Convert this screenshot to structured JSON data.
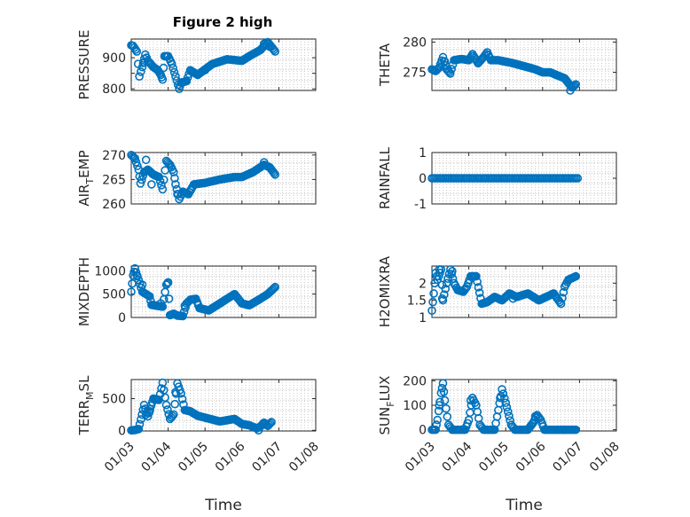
{
  "chart_data": [
    {
      "type": "scatter",
      "title": "Figure 2 high",
      "ylabel": "PRESSURE",
      "ylim": [
        795,
        960
      ],
      "yticks": [
        800,
        850,
        900
      ],
      "yticklabels": [
        "800",
        "",
        "900"
      ],
      "xlim": [
        0,
        5
      ],
      "xticks": [
        0,
        1,
        2,
        3,
        4,
        5
      ],
      "xlabel": "",
      "marker_color": "#0072BD",
      "keys": [
        [
          0,
          940
        ],
        [
          0.05,
          938
        ],
        [
          0.15,
          920
        ],
        [
          0.22,
          840
        ],
        [
          0.3,
          870
        ],
        [
          0.38,
          910
        ],
        [
          0.45,
          890
        ],
        [
          0.6,
          870
        ],
        [
          0.72,
          860
        ],
        [
          0.8,
          845
        ],
        [
          0.85,
          830
        ],
        [
          0.9,
          905
        ],
        [
          1.0,
          905
        ],
        [
          1.1,
          880
        ],
        [
          1.2,
          840
        ],
        [
          1.3,
          800
        ],
        [
          1.35,
          820
        ],
        [
          1.5,
          825
        ],
        [
          1.6,
          860
        ],
        [
          1.8,
          845
        ],
        [
          2.2,
          880
        ],
        [
          2.6,
          895
        ],
        [
          3.0,
          890
        ],
        [
          3.2,
          905
        ],
        [
          3.5,
          925
        ],
        [
          3.7,
          950
        ],
        [
          3.9,
          920
        ]
      ],
      "extra": [
        [
          3.6,
          945
        ],
        [
          3.75,
          935
        ],
        [
          0.35,
          885
        ],
        [
          2.0,
          860
        ]
      ]
    },
    {
      "type": "scatter",
      "title": "",
      "ylabel": "THETA",
      "ylim": [
        272,
        280.5
      ],
      "yticks": [
        275,
        280
      ],
      "yticklabels": [
        "275",
        "280"
      ],
      "xlim": [
        0,
        5
      ],
      "xticks": [
        0,
        1,
        2,
        3,
        4,
        5
      ],
      "xlabel": "",
      "marker_color": "#0072BD",
      "keys": [
        [
          0,
          275.5
        ],
        [
          0.1,
          275.2
        ],
        [
          0.2,
          275.8
        ],
        [
          0.3,
          277.5
        ],
        [
          0.4,
          275.5
        ],
        [
          0.5,
          274.8
        ],
        [
          0.6,
          277
        ],
        [
          0.8,
          277.2
        ],
        [
          1.0,
          277
        ],
        [
          1.1,
          278
        ],
        [
          1.25,
          276.5
        ],
        [
          1.4,
          277.5
        ],
        [
          1.5,
          278.3
        ],
        [
          1.6,
          277
        ],
        [
          1.8,
          277
        ],
        [
          2.2,
          276.5
        ],
        [
          2.5,
          276
        ],
        [
          2.8,
          275.5
        ],
        [
          3.0,
          275
        ],
        [
          3.2,
          275
        ],
        [
          3.4,
          274.5
        ],
        [
          3.6,
          274
        ],
        [
          3.7,
          273.2
        ],
        [
          3.8,
          272.5
        ],
        [
          3.9,
          273
        ]
      ],
      "extra": [
        [
          0.35,
          276.8
        ],
        [
          3.75,
          272
        ]
      ]
    },
    {
      "type": "scatter",
      "title": "",
      "ylabel": "AIR_TEMP",
      "ylim": [
        260,
        270.5
      ],
      "yticks": [
        260,
        265,
        270
      ],
      "yticklabels": [
        "260",
        "265",
        "270"
      ],
      "xlim": [
        0,
        5
      ],
      "xticks": [
        0,
        1,
        2,
        3,
        4,
        5
      ],
      "xlabel": "",
      "marker_color": "#0072BD",
      "keys": [
        [
          0,
          270
        ],
        [
          0.1,
          269.3
        ],
        [
          0.2,
          267
        ],
        [
          0.25,
          264.2
        ],
        [
          0.35,
          266.5
        ],
        [
          0.45,
          267
        ],
        [
          0.6,
          266
        ],
        [
          0.75,
          265.5
        ],
        [
          0.85,
          263
        ],
        [
          0.95,
          268.8
        ],
        [
          1.05,
          268
        ],
        [
          1.15,
          266.5
        ],
        [
          1.2,
          264
        ],
        [
          1.3,
          261
        ],
        [
          1.4,
          262.5
        ],
        [
          1.55,
          262
        ],
        [
          1.7,
          264
        ],
        [
          2.0,
          264.3
        ],
        [
          2.4,
          265
        ],
        [
          2.8,
          265.5
        ],
        [
          3.0,
          265.5
        ],
        [
          3.3,
          266.5
        ],
        [
          3.6,
          268
        ],
        [
          3.75,
          267.5
        ],
        [
          3.9,
          266
        ]
      ],
      "extra": [
        [
          0.4,
          269
        ],
        [
          3.6,
          268.5
        ],
        [
          1.25,
          262
        ],
        [
          0.55,
          264
        ]
      ]
    },
    {
      "type": "scatter",
      "title": "",
      "ylabel": "RAINFALL",
      "ylim": [
        -1,
        1
      ],
      "yticks": [
        -1,
        0,
        1
      ],
      "yticklabels": [
        "-1",
        "0",
        "1"
      ],
      "xlim": [
        0,
        5
      ],
      "xticks": [
        0,
        1,
        2,
        3,
        4,
        5
      ],
      "xlabel": "",
      "marker_color": "#0072BD",
      "keys": [
        [
          0,
          0
        ],
        [
          3.95,
          0
        ]
      ],
      "extra": []
    },
    {
      "type": "scatter",
      "title": "",
      "ylabel": "MIXDEPTH",
      "ylim": [
        0,
        1100
      ],
      "yticks": [
        0,
        500,
        1000
      ],
      "yticklabels": [
        "0",
        "500",
        "1000"
      ],
      "xlim": [
        0,
        5
      ],
      "xticks": [
        0,
        1,
        2,
        3,
        4,
        5
      ],
      "xlabel": "",
      "marker_color": "#0072BD",
      "keys": [
        [
          0,
          550
        ],
        [
          0.05,
          900
        ],
        [
          0.1,
          1050
        ],
        [
          0.2,
          800
        ],
        [
          0.3,
          550
        ],
        [
          0.4,
          500
        ],
        [
          0.5,
          450
        ],
        [
          0.55,
          270
        ],
        [
          0.7,
          250
        ],
        [
          0.85,
          230
        ],
        [
          0.95,
          700
        ],
        [
          1.0,
          750
        ],
        [
          1.05,
          50
        ],
        [
          1.15,
          80
        ],
        [
          1.25,
          40
        ],
        [
          1.4,
          30
        ],
        [
          1.5,
          300
        ],
        [
          1.6,
          380
        ],
        [
          1.75,
          400
        ],
        [
          1.85,
          200
        ],
        [
          2.1,
          150
        ],
        [
          2.5,
          350
        ],
        [
          2.8,
          500
        ],
        [
          3.0,
          300
        ],
        [
          3.2,
          260
        ],
        [
          3.5,
          400
        ],
        [
          3.7,
          500
        ],
        [
          3.9,
          650
        ]
      ],
      "extra": [
        [
          0.15,
          900
        ],
        [
          0.3,
          700
        ],
        [
          0.8,
          300
        ],
        [
          1.45,
          250
        ]
      ]
    },
    {
      "type": "scatter",
      "title": "",
      "ylabel": "H2OMIXRA",
      "ylim": [
        1,
        2.5
      ],
      "yticks": [
        1,
        1.5,
        2
      ],
      "yticklabels": [
        "1",
        "1.5",
        "2"
      ],
      "xlim": [
        0,
        5
      ],
      "xticks": [
        0,
        1,
        2,
        3,
        4,
        5
      ],
      "xlabel": "",
      "marker_color": "#0072BD",
      "keys": [
        [
          0,
          1.2
        ],
        [
          0.05,
          1.7
        ],
        [
          0.1,
          2.3
        ],
        [
          0.15,
          2.1
        ],
        [
          0.25,
          2.4
        ],
        [
          0.3,
          1.5
        ],
        [
          0.4,
          2.0
        ],
        [
          0.5,
          2.4
        ],
        [
          0.6,
          2.0
        ],
        [
          0.7,
          1.8
        ],
        [
          0.85,
          1.75
        ],
        [
          0.95,
          1.9
        ],
        [
          1.05,
          2.2
        ],
        [
          1.2,
          2.2
        ],
        [
          1.35,
          1.4
        ],
        [
          1.5,
          1.45
        ],
        [
          1.7,
          1.6
        ],
        [
          1.9,
          1.5
        ],
        [
          2.1,
          1.7
        ],
        [
          2.3,
          1.6
        ],
        [
          2.6,
          1.7
        ],
        [
          2.9,
          1.5
        ],
        [
          3.1,
          1.6
        ],
        [
          3.3,
          1.7
        ],
        [
          3.5,
          1.4
        ],
        [
          3.6,
          1.9
        ],
        [
          3.7,
          2.1
        ],
        [
          3.9,
          2.2
        ]
      ],
      "extra": [
        [
          0.2,
          2.4
        ],
        [
          0.28,
          1.55
        ],
        [
          0.55,
          2.35
        ],
        [
          2.2,
          1.55
        ]
      ]
    },
    {
      "type": "scatter",
      "title": "",
      "ylabel": "TERR_MSL",
      "ylim": [
        -10,
        800
      ],
      "yticks": [
        0,
        500
      ],
      "yticklabels": [
        "0",
        "500"
      ],
      "xlim": [
        0,
        5
      ],
      "xticks": [
        0,
        1,
        2,
        3,
        4,
        5
      ],
      "xlabel": "Time",
      "marker_color": "#0072BD",
      "keys": [
        [
          0,
          0
        ],
        [
          0.1,
          5
        ],
        [
          0.2,
          20
        ],
        [
          0.35,
          400
        ],
        [
          0.45,
          220
        ],
        [
          0.6,
          500
        ],
        [
          0.75,
          480
        ],
        [
          0.85,
          750
        ],
        [
          0.95,
          400
        ],
        [
          1.05,
          180
        ],
        [
          1.15,
          250
        ],
        [
          1.25,
          740
        ],
        [
          1.35,
          580
        ],
        [
          1.45,
          320
        ],
        [
          1.6,
          300
        ],
        [
          1.8,
          230
        ],
        [
          2.0,
          200
        ],
        [
          2.4,
          140
        ],
        [
          2.8,
          180
        ],
        [
          3.0,
          100
        ],
        [
          3.2,
          80
        ],
        [
          3.4,
          30
        ],
        [
          3.5,
          60
        ],
        [
          3.6,
          120
        ],
        [
          3.7,
          70
        ],
        [
          3.8,
          130
        ]
      ],
      "extra": [
        [
          0.4,
          250
        ],
        [
          0.5,
          300
        ],
        [
          1.2,
          600
        ],
        [
          3.45,
          0
        ]
      ]
    },
    {
      "type": "scatter",
      "title": "",
      "ylabel": "SUN_FLUX",
      "ylim": [
        -5,
        205
      ],
      "yticks": [
        0,
        100,
        200
      ],
      "yticklabels": [
        "0",
        "100",
        "200"
      ],
      "xlim": [
        0,
        5
      ],
      "xticks": [
        0,
        1,
        2,
        3,
        4,
        5
      ],
      "xlabel": "Time",
      "marker_color": "#0072BD",
      "keys": [
        [
          0,
          0
        ],
        [
          0.1,
          0
        ],
        [
          0.15,
          40
        ],
        [
          0.25,
          150
        ],
        [
          0.3,
          190
        ],
        [
          0.35,
          120
        ],
        [
          0.45,
          20
        ],
        [
          0.55,
          0
        ],
        [
          0.9,
          0
        ],
        [
          1.0,
          40
        ],
        [
          1.1,
          130
        ],
        [
          1.2,
          100
        ],
        [
          1.3,
          20
        ],
        [
          1.4,
          0
        ],
        [
          1.7,
          0
        ],
        [
          1.8,
          80
        ],
        [
          1.9,
          165
        ],
        [
          2.0,
          110
        ],
        [
          2.15,
          20
        ],
        [
          2.25,
          0
        ],
        [
          2.6,
          0
        ],
        [
          2.75,
          30
        ],
        [
          2.85,
          60
        ],
        [
          2.95,
          40
        ],
        [
          3.05,
          0
        ],
        [
          3.9,
          0
        ]
      ],
      "extra": [
        [
          0.2,
          100
        ],
        [
          1.05,
          120
        ],
        [
          1.85,
          130
        ],
        [
          2.8,
          55
        ]
      ]
    }
  ],
  "xticklabels": [
    "01/03",
    "01/04",
    "01/05",
    "01/06",
    "01/07",
    "01/08"
  ]
}
